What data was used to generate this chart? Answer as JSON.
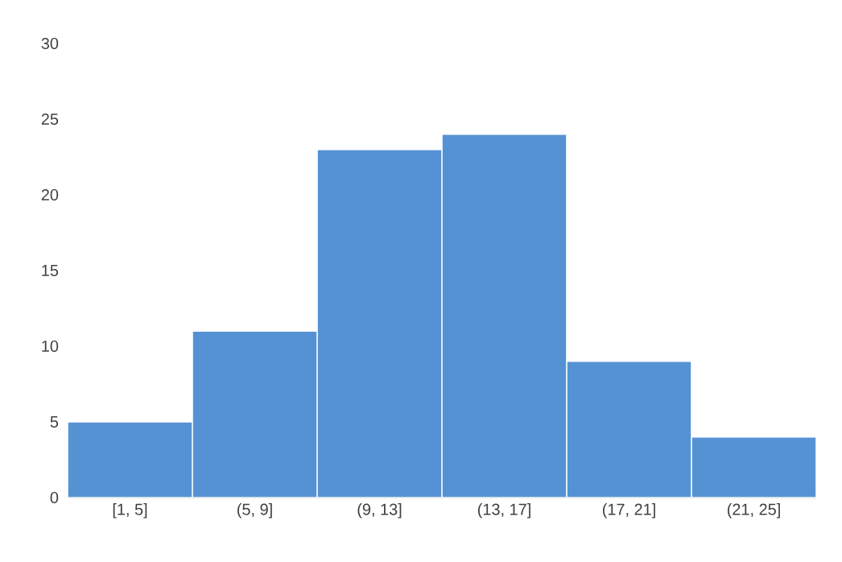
{
  "chart_data": {
    "type": "bar",
    "categories": [
      "[1, 5]",
      "(5, 9]",
      "(9, 13]",
      "(13, 17]",
      "(17, 21]",
      "(21, 25]"
    ],
    "values": [
      5,
      11,
      23,
      24,
      9,
      4
    ],
    "color": "#5592d4",
    "ylim": [
      0,
      30
    ],
    "yticks": [
      0,
      5,
      10,
      15,
      20,
      25,
      30
    ],
    "grid": false
  }
}
